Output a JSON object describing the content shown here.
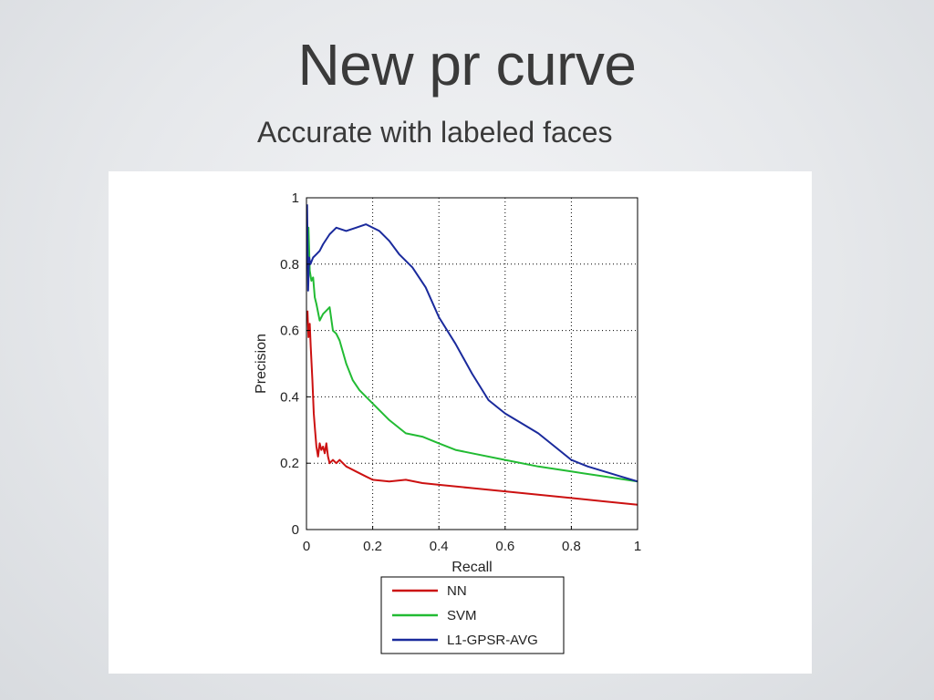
{
  "slide": {
    "title": "New pr curve",
    "subtitle": "Accurate with labeled faces"
  },
  "chart_data": {
    "type": "line",
    "title": "",
    "xlabel": "Recall",
    "ylabel": "Precision",
    "xlim": [
      0,
      1
    ],
    "ylim": [
      0,
      1
    ],
    "xticks": [
      0,
      0.2,
      0.4,
      0.6,
      0.8,
      1
    ],
    "yticks": [
      0,
      0.2,
      0.4,
      0.6,
      0.8,
      1
    ],
    "xtick_labels": [
      "0",
      "0.2",
      "0.4",
      "0.6",
      "0.8",
      "1"
    ],
    "ytick_labels": [
      "0",
      "0.2",
      "0.4",
      "0.6",
      "0.8",
      "1"
    ],
    "grid": true,
    "legend_position": "bottom-outside",
    "series": [
      {
        "name": "NN",
        "color": "#cc1111",
        "x": [
          0.003,
          0.006,
          0.01,
          0.013,
          0.018,
          0.022,
          0.026,
          0.03,
          0.035,
          0.04,
          0.045,
          0.05,
          0.055,
          0.06,
          0.065,
          0.07,
          0.08,
          0.09,
          0.1,
          0.12,
          0.15,
          0.18,
          0.2,
          0.25,
          0.3,
          0.35,
          0.4,
          0.5,
          0.6,
          0.7,
          0.8,
          0.9,
          1.0
        ],
        "y": [
          0.66,
          0.58,
          0.62,
          0.55,
          0.45,
          0.35,
          0.3,
          0.25,
          0.22,
          0.26,
          0.24,
          0.25,
          0.23,
          0.26,
          0.22,
          0.2,
          0.21,
          0.2,
          0.21,
          0.19,
          0.175,
          0.16,
          0.15,
          0.145,
          0.15,
          0.14,
          0.135,
          0.125,
          0.115,
          0.105,
          0.095,
          0.085,
          0.075
        ]
      },
      {
        "name": "SVM",
        "color": "#22bb33",
        "x": [
          0.003,
          0.006,
          0.01,
          0.015,
          0.02,
          0.025,
          0.03,
          0.04,
          0.05,
          0.06,
          0.07,
          0.08,
          0.09,
          0.1,
          0.12,
          0.14,
          0.16,
          0.2,
          0.25,
          0.3,
          0.35,
          0.4,
          0.45,
          0.5,
          0.6,
          0.7,
          0.8,
          0.9,
          1.0
        ],
        "y": [
          0.8,
          0.91,
          0.78,
          0.75,
          0.76,
          0.7,
          0.68,
          0.63,
          0.65,
          0.66,
          0.67,
          0.6,
          0.59,
          0.57,
          0.5,
          0.45,
          0.42,
          0.38,
          0.33,
          0.29,
          0.28,
          0.26,
          0.24,
          0.23,
          0.21,
          0.19,
          0.175,
          0.16,
          0.145
        ]
      },
      {
        "name": "L1-GPSR-AVG",
        "color": "#1a2a9c",
        "x": [
          0.002,
          0.005,
          0.008,
          0.012,
          0.016,
          0.02,
          0.03,
          0.04,
          0.05,
          0.07,
          0.09,
          0.12,
          0.15,
          0.18,
          0.22,
          0.25,
          0.28,
          0.32,
          0.36,
          0.4,
          0.45,
          0.5,
          0.55,
          0.6,
          0.65,
          0.7,
          0.75,
          0.8,
          0.85,
          0.9,
          0.95,
          1.0
        ],
        "y": [
          0.98,
          0.72,
          0.82,
          0.8,
          0.81,
          0.82,
          0.83,
          0.84,
          0.86,
          0.89,
          0.91,
          0.9,
          0.91,
          0.92,
          0.9,
          0.87,
          0.83,
          0.79,
          0.73,
          0.64,
          0.56,
          0.47,
          0.39,
          0.35,
          0.32,
          0.29,
          0.25,
          0.21,
          0.19,
          0.175,
          0.16,
          0.145
        ]
      }
    ]
  }
}
